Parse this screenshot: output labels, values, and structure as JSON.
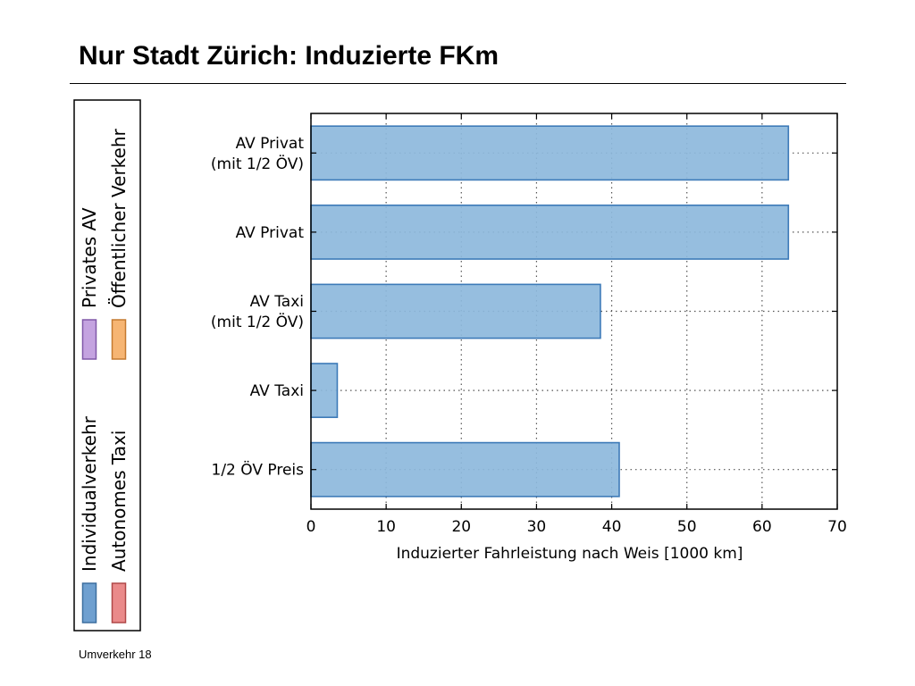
{
  "slide": {
    "title": "Nur Stadt Zürich: Induzierte FKm",
    "footer": "Umverkehr 18"
  },
  "chart_data": {
    "type": "bar",
    "orientation": "horizontal",
    "categories": [
      "AV Privat\n(mit 1/2 ÖV)",
      "AV Privat",
      "AV Taxi\n(mit 1/2 ÖV)",
      "AV Taxi",
      "1/2 ÖV Preis"
    ],
    "values": [
      63.5,
      63.5,
      38.5,
      3.5,
      41
    ],
    "xlabel": "Induzierter Fahrleistung nach Weis [1000 km]",
    "xlim": [
      0,
      70
    ],
    "xticks": [
      0,
      10,
      20,
      30,
      40,
      50,
      60,
      70
    ],
    "grid": true,
    "bar_color": "#8db8dc",
    "bar_edge_color": "#3d7ab8",
    "legend": {
      "placement": "left",
      "orientation": "vertical",
      "items": [
        {
          "label": "Individualverkehr",
          "color": "#6fa0d0",
          "edge": "#3d6f9f"
        },
        {
          "label": "Autonomes Taxi",
          "color": "#ea8a8a",
          "edge": "#b04848"
        },
        {
          "label": "Privates AV",
          "color": "#c4a3e0",
          "edge": "#8058a8"
        },
        {
          "label": "Öffentlicher Verkehr",
          "color": "#f6b573",
          "edge": "#c47a30"
        }
      ]
    }
  }
}
